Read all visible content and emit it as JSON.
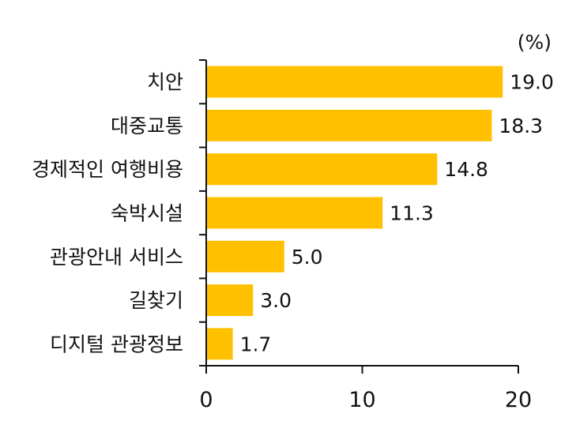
{
  "chart_data": {
    "type": "bar",
    "orientation": "horizontal",
    "unit": "(%)",
    "categories": [
      "치안",
      "대중교통",
      "경제적인 여행비용",
      "숙박시설",
      "관광안내 서비스",
      "길찾기",
      "디지털 관광정보"
    ],
    "values": [
      19.0,
      18.3,
      14.8,
      11.3,
      5.0,
      3.0,
      1.7
    ],
    "value_labels": [
      "19.0",
      "18.3",
      "14.8",
      "11.3",
      "5.0",
      "3.0",
      "1.7"
    ],
    "xlim": [
      0,
      20
    ],
    "x_ticks": [
      0,
      10,
      20
    ],
    "x_tick_labels": [
      "0",
      "10",
      "20"
    ],
    "bar_color": "#FFC000",
    "grid": false,
    "legend": "none"
  }
}
